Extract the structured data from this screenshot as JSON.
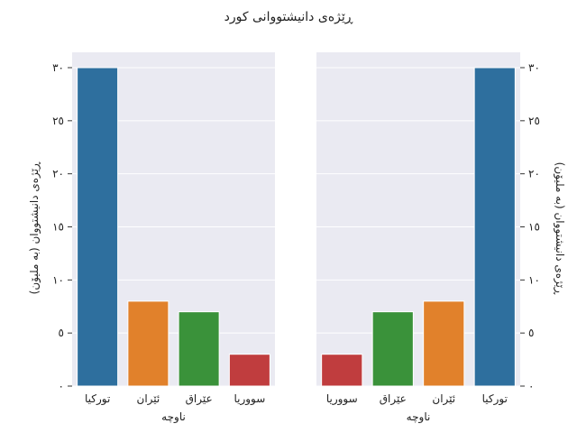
{
  "title": "ڕێژەی دانیشتووانی کورد",
  "chart_data": [
    {
      "type": "bar",
      "panel": "left",
      "categories": [
        "تورکیا",
        "ئێران",
        "عێراق",
        "سووریا"
      ],
      "values": [
        30,
        8,
        7,
        3
      ],
      "colors": [
        "#2e6f9e",
        "#e1812b",
        "#3a923a",
        "#c03d3e"
      ],
      "xlabel": "ناوچە",
      "ylabel": "ڕێژەی دانیشتووان (بە ملیۆن)",
      "ylim": [
        0,
        30
      ],
      "yticks": [
        0,
        5,
        10,
        15,
        20,
        25,
        30
      ],
      "ytick_labels": [
        "٠",
        "٥",
        "١٠",
        "١٥",
        "٢٠",
        "٢٥",
        "٣٠"
      ],
      "yaxis_side": "left",
      "grid": true
    },
    {
      "type": "bar",
      "panel": "right",
      "categories": [
        "سووریا",
        "عێراق",
        "ئێران",
        "تورکیا"
      ],
      "values": [
        3,
        7,
        8,
        30
      ],
      "colors": [
        "#c03d3e",
        "#3a923a",
        "#e1812b",
        "#2e6f9e"
      ],
      "xlabel": "ناوچە",
      "ylabel": "ڕێژەی دانیشتووان (بە ملیۆن)",
      "ylim": [
        0,
        30
      ],
      "yticks": [
        0,
        5,
        10,
        15,
        20,
        25,
        30
      ],
      "ytick_labels": [
        "٠",
        "٥",
        "١٠",
        "١٥",
        "٢٠",
        "٢٥",
        "٣٠"
      ],
      "yaxis_side": "right",
      "grid": true
    }
  ]
}
